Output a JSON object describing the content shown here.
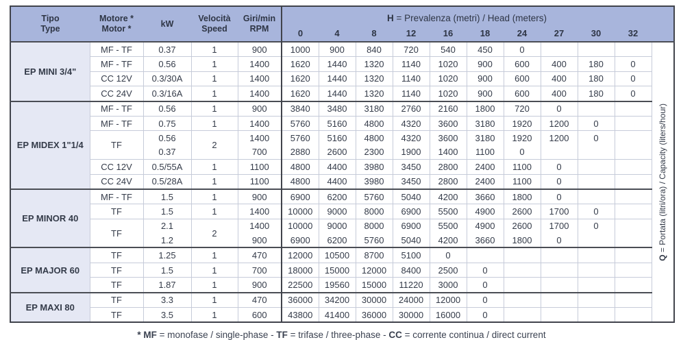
{
  "table": {
    "left_headers": [
      {
        "key": "tipo",
        "lines": [
          "Tipo",
          "Type"
        ]
      },
      {
        "key": "motore",
        "lines": [
          "Motore *",
          "Motor *"
        ]
      },
      {
        "key": "kw",
        "lines": [
          "kW",
          ""
        ]
      },
      {
        "key": "velocita",
        "lines": [
          "Velocità",
          "Speed"
        ]
      },
      {
        "key": "rpm",
        "lines": [
          "Giri/min",
          "RPM"
        ]
      }
    ],
    "h_title": {
      "bold": "H",
      "rest": " = Prevalenza (metri) / Head (meters)"
    },
    "head_values": [
      "0",
      "4",
      "8",
      "12",
      "16",
      "18",
      "24",
      "27",
      "30",
      "32"
    ],
    "q_label": {
      "bold": "Q",
      "rest": " = Portata (litri/ora) / Capacity (liters/hour)"
    },
    "colors": {
      "header_bg": "#a8b5dc",
      "group_bg": "#e5e8f4",
      "dark_border": "#40434b",
      "light_border": "#c6cbd9",
      "text": "#343b49"
    },
    "groups": [
      {
        "name": "EP MINI 3/4\"",
        "rows": [
          {
            "motor": "MF - TF",
            "kw": "0.37",
            "speed": "1",
            "rpm": "900",
            "q": [
              "1000",
              "900",
              "840",
              "720",
              "540",
              "450",
              "0",
              "",
              "",
              ""
            ]
          },
          {
            "motor": "MF - TF",
            "kw": "0.56",
            "speed": "1",
            "rpm": "1400",
            "q": [
              "1620",
              "1440",
              "1320",
              "1140",
              "1020",
              "900",
              "600",
              "400",
              "180",
              "0"
            ]
          },
          {
            "motor": "CC 12V",
            "kw": "0.3/30A",
            "speed": "1",
            "rpm": "1400",
            "q": [
              "1620",
              "1440",
              "1320",
              "1140",
              "1020",
              "900",
              "600",
              "400",
              "180",
              "0"
            ]
          },
          {
            "motor": "CC 24V",
            "kw": "0.3/16A",
            "speed": "1",
            "rpm": "1400",
            "q": [
              "1620",
              "1440",
              "1320",
              "1140",
              "1020",
              "900",
              "600",
              "400",
              "180",
              "0"
            ]
          }
        ]
      },
      {
        "name": "EP MIDEX 1\"1/4",
        "rows": [
          {
            "motor": "MF - TF",
            "kw": "0.56",
            "speed": "1",
            "rpm": "900",
            "q": [
              "3840",
              "3480",
              "3180",
              "2760",
              "2160",
              "1800",
              "720",
              "0",
              "",
              ""
            ]
          },
          {
            "motor": "MF - TF",
            "kw": "0.75",
            "speed": "1",
            "rpm": "1400",
            "q": [
              "5760",
              "5160",
              "4800",
              "4320",
              "3600",
              "3180",
              "1920",
              "1200",
              "0",
              ""
            ]
          },
          {
            "motor": "TF",
            "kw": "0.56",
            "speed": "2",
            "rpm": "1400",
            "q": [
              "5760",
              "5160",
              "4800",
              "4320",
              "3600",
              "3180",
              "1920",
              "1200",
              "0",
              ""
            ],
            "pair": "first"
          },
          {
            "kw": "0.37",
            "rpm": "700",
            "q": [
              "2880",
              "2600",
              "2300",
              "1900",
              "1400",
              "1100",
              "0",
              "",
              "",
              ""
            ],
            "pair": "second"
          },
          {
            "motor": "CC 12V",
            "kw": "0.5/55A",
            "speed": "1",
            "rpm": "1100",
            "q": [
              "4800",
              "4400",
              "3980",
              "3450",
              "2800",
              "2400",
              "1100",
              "0",
              "",
              ""
            ]
          },
          {
            "motor": "CC 24V",
            "kw": "0.5/28A",
            "speed": "1",
            "rpm": "1100",
            "q": [
              "4800",
              "4400",
              "3980",
              "3450",
              "2800",
              "2400",
              "1100",
              "0",
              "",
              ""
            ]
          }
        ]
      },
      {
        "name": "EP MINOR 40",
        "rows": [
          {
            "motor": "MF - TF",
            "kw": "1.5",
            "speed": "1",
            "rpm": "900",
            "q": [
              "6900",
              "6200",
              "5760",
              "5040",
              "4200",
              "3660",
              "1800",
              "0",
              "",
              ""
            ]
          },
          {
            "motor": "TF",
            "kw": "1.5",
            "speed": "1",
            "rpm": "1400",
            "q": [
              "10000",
              "9000",
              "8000",
              "6900",
              "5500",
              "4900",
              "2600",
              "1700",
              "0",
              ""
            ]
          },
          {
            "motor": "TF",
            "kw": "2.1",
            "speed": "2",
            "rpm": "1400",
            "q": [
              "10000",
              "9000",
              "8000",
              "6900",
              "5500",
              "4900",
              "2600",
              "1700",
              "0",
              ""
            ],
            "pair": "first"
          },
          {
            "kw": "1.2",
            "rpm": "900",
            "q": [
              "6900",
              "6200",
              "5760",
              "5040",
              "4200",
              "3660",
              "1800",
              "0",
              "",
              ""
            ],
            "pair": "second"
          }
        ]
      },
      {
        "name": "EP MAJOR 60",
        "rows": [
          {
            "motor": "TF",
            "kw": "1.25",
            "speed": "1",
            "rpm": "470",
            "q": [
              "12000",
              "10500",
              "8700",
              "5100",
              "0",
              "",
              "",
              "",
              "",
              ""
            ]
          },
          {
            "motor": "TF",
            "kw": "1.5",
            "speed": "1",
            "rpm": "700",
            "q": [
              "18000",
              "15000",
              "12000",
              "8400",
              "2500",
              "0",
              "",
              "",
              "",
              ""
            ]
          },
          {
            "motor": "TF",
            "kw": "1.87",
            "speed": "1",
            "rpm": "900",
            "q": [
              "22500",
              "19560",
              "15000",
              "11220",
              "3000",
              "0",
              "",
              "",
              "",
              ""
            ]
          }
        ]
      },
      {
        "name": "EP MAXI 80",
        "rows": [
          {
            "motor": "TF",
            "kw": "3.3",
            "speed": "1",
            "rpm": "470",
            "q": [
              "36000",
              "34200",
              "30000",
              "24000",
              "12000",
              "0",
              "",
              "",
              "",
              ""
            ]
          },
          {
            "motor": "TF",
            "kw": "3.5",
            "speed": "1",
            "rpm": "600",
            "q": [
              "43800",
              "41400",
              "36000",
              "30000",
              "16000",
              "0",
              "",
              "",
              "",
              ""
            ]
          }
        ]
      }
    ]
  },
  "footnote": {
    "b1": "* MF",
    "t1": " = monofase / single-phase - ",
    "b2": "TF",
    "t2": " = trifase / three-phase - ",
    "b3": "CC",
    "t3": " = corrente continua / direct current"
  }
}
